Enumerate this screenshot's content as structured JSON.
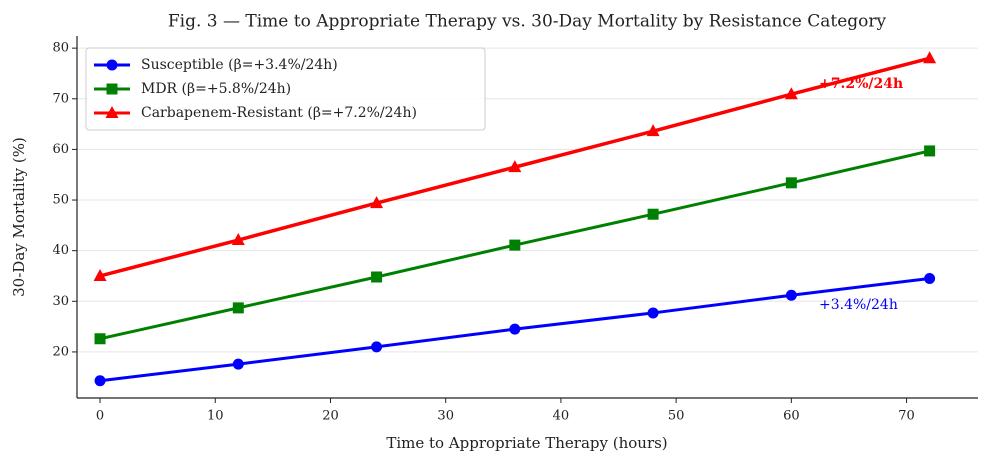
{
  "chart_data": {
    "type": "line",
    "title": "Fig. 3 — Time to Appropriate Therapy vs. 30-Day Mortality by Resistance Category",
    "xlabel": "Time to Appropriate Therapy (hours)",
    "ylabel": "30-Day Mortality (%)",
    "x": [
      0,
      12,
      24,
      36,
      48,
      60,
      72
    ],
    "series": [
      {
        "name": "Susceptible (β=+3.4%/24h)",
        "color": "#0000ff",
        "marker": "circle",
        "values": [
          14.3,
          17.6,
          21.0,
          24.5,
          27.7,
          31.2,
          34.5
        ]
      },
      {
        "name": "MDR (β=+5.8%/24h)",
        "color": "#008000",
        "marker": "square",
        "values": [
          22.6,
          28.7,
          34.8,
          41.1,
          47.2,
          53.4,
          59.7
        ]
      },
      {
        "name": "Carbapenem-Resistant (β=+7.2%/24h)",
        "color": "#ff0000",
        "marker": "triangle",
        "values": [
          35.0,
          42.1,
          49.4,
          56.5,
          63.6,
          70.9,
          78.0
        ]
      }
    ],
    "annotations": [
      {
        "text": "+7.2%/24h",
        "x": 62.4,
        "y": 72.9,
        "color": "#ff0000",
        "bold": true
      },
      {
        "text": "+3.4%/24h",
        "x": 62.4,
        "y": 29.3,
        "color": "#0000ff",
        "bold": false
      }
    ],
    "xlim": [
      -2,
      76.2
    ],
    "ylim": [
      10.9,
      82.4
    ],
    "xticks": [
      0,
      10,
      20,
      30,
      40,
      50,
      60,
      70
    ],
    "yticks": [
      20,
      30,
      40,
      50,
      60,
      70,
      80
    ],
    "grid": true,
    "legend": "upper left"
  }
}
